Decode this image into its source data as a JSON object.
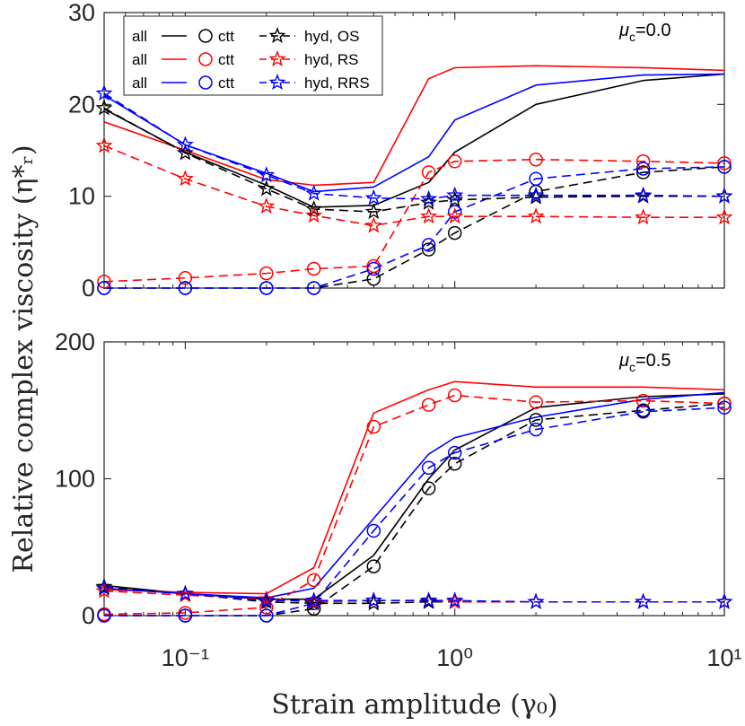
{
  "colors": {
    "OS": "#000000",
    "RS": "#ff0000",
    "RRS": "#0000ff"
  },
  "chart_data": {
    "type": "line",
    "xscale": "log",
    "xlim": [
      0.05,
      10
    ],
    "xlabel": "Strain amplitude (γ₀)",
    "ylabel": "Relative complex viscosity (η*ᵣ)",
    "xtick_labels": [
      "10⁻¹",
      "10⁰",
      "10¹"
    ],
    "legend": {
      "placement": "top-left",
      "rows": [
        {
          "all": "all",
          "ctt": "ctt",
          "hyd": "hyd, OS"
        },
        {
          "all": "all",
          "ctt": "ctt",
          "hyd": "hyd, RS"
        },
        {
          "all": "all",
          "ctt": "ctt",
          "hyd": "hyd, RRS"
        }
      ]
    },
    "x": [
      0.05,
      0.1,
      0.2,
      0.3,
      0.5,
      0.8,
      1.0,
      2.0,
      5.0,
      10.0
    ],
    "panels": [
      {
        "annotation_sym": "μ",
        "annotation_sub": "c",
        "annotation_val": "=0.0",
        "ylim": [
          0,
          30
        ],
        "yticks": [
          0,
          10,
          20,
          30
        ],
        "ytick_labels": [
          "0",
          "10",
          "20",
          "30"
        ],
        "series": [
          {
            "name": "all, OS",
            "group": "OS",
            "kind": "all",
            "values": [
              19.5,
              14.8,
              11.2,
              8.8,
              9.0,
              11.5,
              14.8,
              20.0,
              22.6,
              23.3
            ]
          },
          {
            "name": "all, RS",
            "group": "RS",
            "kind": "all",
            "values": [
              18.1,
              15.0,
              11.8,
              11.2,
              11.5,
              22.8,
              24.0,
              24.2,
              24.0,
              23.7
            ]
          },
          {
            "name": "all, RRS",
            "group": "RRS",
            "kind": "all",
            "values": [
              21.0,
              15.6,
              12.5,
              10.5,
              11.0,
              14.3,
              18.3,
              22.1,
              23.2,
              23.3
            ]
          },
          {
            "name": "ctt, OS",
            "group": "OS",
            "kind": "ctt",
            "values": [
              0.0,
              0.0,
              0.0,
              0.0,
              1.0,
              4.2,
              6.0,
              10.5,
              12.6,
              13.2
            ]
          },
          {
            "name": "ctt, RS",
            "group": "RS",
            "kind": "ctt",
            "values": [
              0.7,
              1.1,
              1.6,
              2.1,
              2.4,
              12.6,
              13.8,
              14.0,
              13.8,
              13.6
            ]
          },
          {
            "name": "ctt, RRS",
            "group": "RRS",
            "kind": "ctt",
            "values": [
              0.0,
              0.0,
              0.0,
              0.0,
              2.1,
              4.7,
              8.3,
              11.9,
              13.0,
              13.2
            ]
          },
          {
            "name": "hyd, OS",
            "group": "OS",
            "kind": "hyd",
            "values": [
              19.6,
              14.7,
              10.8,
              8.6,
              8.3,
              9.3,
              9.6,
              9.9,
              10.0,
              10.0
            ]
          },
          {
            "name": "hyd, RS",
            "group": "RS",
            "kind": "hyd",
            "values": [
              15.5,
              11.9,
              8.9,
              7.9,
              6.8,
              7.8,
              7.8,
              7.8,
              7.7,
              7.7
            ]
          },
          {
            "name": "hyd, RRS",
            "group": "RRS",
            "kind": "hyd",
            "values": [
              21.2,
              15.6,
              12.3,
              10.3,
              9.8,
              9.7,
              10.1,
              10.1,
              10.1,
              10.0
            ]
          }
        ]
      },
      {
        "annotation_sym": "μ",
        "annotation_sub": "c",
        "annotation_val": "=0.5",
        "ylim": [
          0,
          200
        ],
        "yticks": [
          0,
          100,
          200
        ],
        "ytick_labels": [
          "0",
          "100",
          "200"
        ],
        "series": [
          {
            "name": "all, OS",
            "group": "OS",
            "kind": "all",
            "values": [
              22,
              16,
              12,
              12,
              44,
              100,
              121,
              152,
              160,
              162
            ]
          },
          {
            "name": "all, RS",
            "group": "RS",
            "kind": "all",
            "values": [
              19,
              17,
              16,
              35,
              148,
              165,
              171,
              167,
              167,
              165
            ]
          },
          {
            "name": "all, RRS",
            "group": "RRS",
            "kind": "all",
            "values": [
              20,
              16,
              13,
              20,
              71,
              118,
              130,
              145,
              158,
              163
            ]
          },
          {
            "name": "ctt, OS",
            "group": "OS",
            "kind": "ctt",
            "values": [
              0,
              0,
              0,
              5,
              36,
              93,
              111,
              143,
              150,
              155
            ]
          },
          {
            "name": "ctt, RS",
            "group": "RS",
            "kind": "ctt",
            "values": [
              1,
              2,
              6,
              26,
              138,
              154,
              161,
              156,
              157,
              155
            ]
          },
          {
            "name": "ctt, RRS",
            "group": "RRS",
            "kind": "ctt",
            "values": [
              0,
              0,
              0,
              9,
              62,
              108,
              119,
              136,
              149,
              152
            ]
          },
          {
            "name": "hyd, OS",
            "group": "OS",
            "kind": "hyd",
            "values": [
              21,
              16,
              10,
              9,
              9,
              10,
              10,
              10,
              10,
              10
            ]
          },
          {
            "name": "hyd, RS",
            "group": "RS",
            "kind": "hyd",
            "values": [
              18,
              15,
              12,
              10,
              11,
              11,
              10,
              10,
              10,
              10
            ]
          },
          {
            "name": "hyd, RRS",
            "group": "RRS",
            "kind": "hyd",
            "values": [
              20,
              16,
              11,
              11,
              11,
              11,
              11,
              10,
              10,
              10
            ]
          }
        ]
      }
    ]
  }
}
